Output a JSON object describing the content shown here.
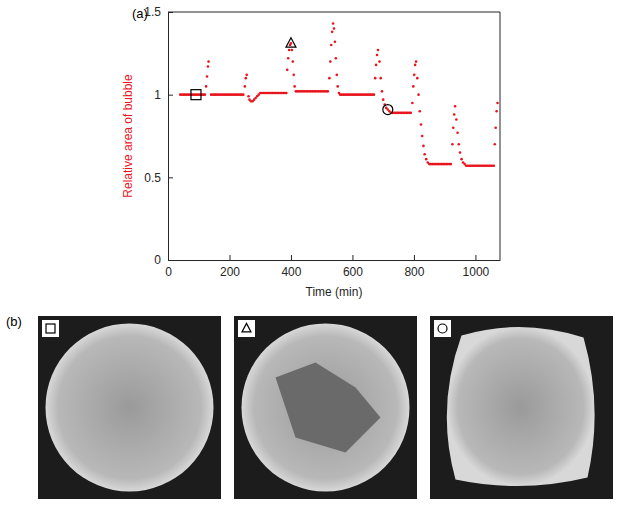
{
  "chart_data": {
    "type": "scatter",
    "x_label": "Time (min)",
    "y_label": "Relative area of bubble",
    "xlim": [
      0,
      1080
    ],
    "xticks": [
      0,
      200,
      400,
      600,
      800,
      1000
    ],
    "ylim": [
      0,
      1.5
    ],
    "yticks": [
      0,
      0.5,
      1,
      1.5
    ],
    "grid": false,
    "series": [
      {
        "color": "#e8141c",
        "marker": "dot",
        "x": [
          40,
          45,
          50,
          55,
          60,
          65,
          70,
          75,
          80,
          85,
          90,
          95,
          100,
          105,
          110,
          115,
          120,
          124,
          127,
          130,
          132,
          140,
          145,
          150,
          155,
          160,
          165,
          170,
          175,
          180,
          185,
          190,
          195,
          200,
          205,
          210,
          215,
          220,
          225,
          230,
          235,
          240,
          245,
          250,
          253,
          256,
          262,
          265,
          270,
          275,
          280,
          285,
          290,
          295,
          300,
          305,
          310,
          315,
          320,
          325,
          330,
          335,
          340,
          345,
          350,
          355,
          360,
          365,
          370,
          375,
          380,
          385,
          388,
          391,
          394,
          397,
          400,
          403,
          406,
          409,
          412,
          416,
          420,
          425,
          430,
          435,
          440,
          445,
          450,
          455,
          460,
          465,
          470,
          475,
          480,
          485,
          490,
          495,
          500,
          505,
          510,
          515,
          520,
          525,
          528,
          531,
          534,
          537,
          540,
          543,
          546,
          549,
          552,
          556,
          560,
          565,
          570,
          575,
          580,
          585,
          590,
          595,
          600,
          605,
          610,
          615,
          620,
          625,
          630,
          635,
          640,
          645,
          650,
          655,
          660,
          665,
          670,
          674,
          677,
          680,
          683,
          688,
          692,
          696,
          700,
          705,
          710,
          715,
          720,
          725,
          730,
          735,
          740,
          745,
          750,
          755,
          760,
          765,
          770,
          775,
          780,
          785,
          790,
          795,
          798,
          801,
          804,
          807,
          811,
          815,
          819,
          823,
          827,
          831,
          835,
          840,
          845,
          850,
          855,
          860,
          865,
          870,
          875,
          880,
          885,
          890,
          895,
          900,
          905,
          910,
          915,
          920,
          925,
          928,
          931,
          934,
          938,
          942,
          946,
          950,
          955,
          960,
          965,
          970,
          975,
          980,
          985,
          990,
          995,
          1000,
          1005,
          1010,
          1015,
          1020,
          1025,
          1030,
          1035,
          1040,
          1045,
          1050,
          1055,
          1060,
          1063,
          1066,
          1069,
          1072
        ],
        "values": [
          1,
          1,
          1,
          1,
          1,
          1,
          1,
          1,
          1,
          1,
          1,
          1,
          1,
          1,
          1,
          1,
          1,
          1.05,
          1.11,
          1.17,
          1.2,
          1,
          1,
          1,
          1,
          1,
          1,
          1,
          1,
          1,
          1,
          1,
          1,
          1,
          1,
          1,
          1,
          1,
          1,
          1,
          1,
          1,
          1,
          1.05,
          1.1,
          1.12,
          0.99,
          0.97,
          0.96,
          0.96,
          0.97,
          0.98,
          0.99,
          1,
          1.01,
          1.01,
          1.01,
          1.01,
          1.01,
          1.01,
          1.01,
          1.01,
          1.01,
          1.01,
          1.01,
          1.01,
          1.01,
          1.01,
          1.01,
          1.01,
          1.01,
          1.01,
          1.15,
          1.22,
          1.27,
          1.3,
          1.31,
          1.27,
          1.2,
          1.12,
          1.05,
          1.02,
          1.02,
          1.02,
          1.02,
          1.02,
          1.02,
          1.02,
          1.02,
          1.02,
          1.02,
          1.02,
          1.02,
          1.02,
          1.02,
          1.02,
          1.02,
          1.02,
          1.02,
          1.02,
          1.02,
          1.02,
          1.02,
          1.1,
          1.2,
          1.3,
          1.38,
          1.43,
          1.4,
          1.32,
          1.22,
          1.12,
          1.05,
          1.01,
          1,
          1,
          1,
          1,
          1,
          1,
          1,
          1,
          1,
          1,
          1,
          1,
          1,
          1,
          1,
          1,
          1,
          1,
          1,
          1,
          1,
          1,
          1,
          1.1,
          1.18,
          1.24,
          1.27,
          1.2,
          1.1,
          1.02,
          0.97,
          0.94,
          0.92,
          0.91,
          0.9,
          0.89,
          0.89,
          0.89,
          0.89,
          0.89,
          0.89,
          0.89,
          0.89,
          0.89,
          0.89,
          0.89,
          0.89,
          0.89,
          0.89,
          0.95,
          1.05,
          1.12,
          1.18,
          1.2,
          1.1,
          1,
          0.9,
          0.82,
          0.75,
          0.69,
          0.64,
          0.61,
          0.59,
          0.58,
          0.58,
          0.58,
          0.58,
          0.58,
          0.58,
          0.58,
          0.58,
          0.58,
          0.58,
          0.58,
          0.58,
          0.58,
          0.58,
          0.58,
          0.7,
          0.8,
          0.88,
          0.93,
          0.85,
          0.77,
          0.7,
          0.65,
          0.61,
          0.59,
          0.58,
          0.57,
          0.57,
          0.57,
          0.57,
          0.57,
          0.57,
          0.57,
          0.57,
          0.57,
          0.57,
          0.57,
          0.57,
          0.57,
          0.57,
          0.57,
          0.57,
          0.57,
          0.57,
          0.57,
          0.7,
          0.8,
          0.9,
          0.95
        ]
      }
    ],
    "annotations": [
      {
        "x": 91,
        "y": 1,
        "marker": "square"
      },
      {
        "x": 400,
        "y": 1.31,
        "marker": "triangle"
      },
      {
        "x": 715,
        "y": 0.91,
        "marker": "circle"
      }
    ]
  },
  "panel_labels": [
    "(a)",
    "(b)"
  ],
  "images": [
    {
      "marker": "square"
    },
    {
      "marker": "triangle"
    },
    {
      "marker": "circle"
    }
  ]
}
